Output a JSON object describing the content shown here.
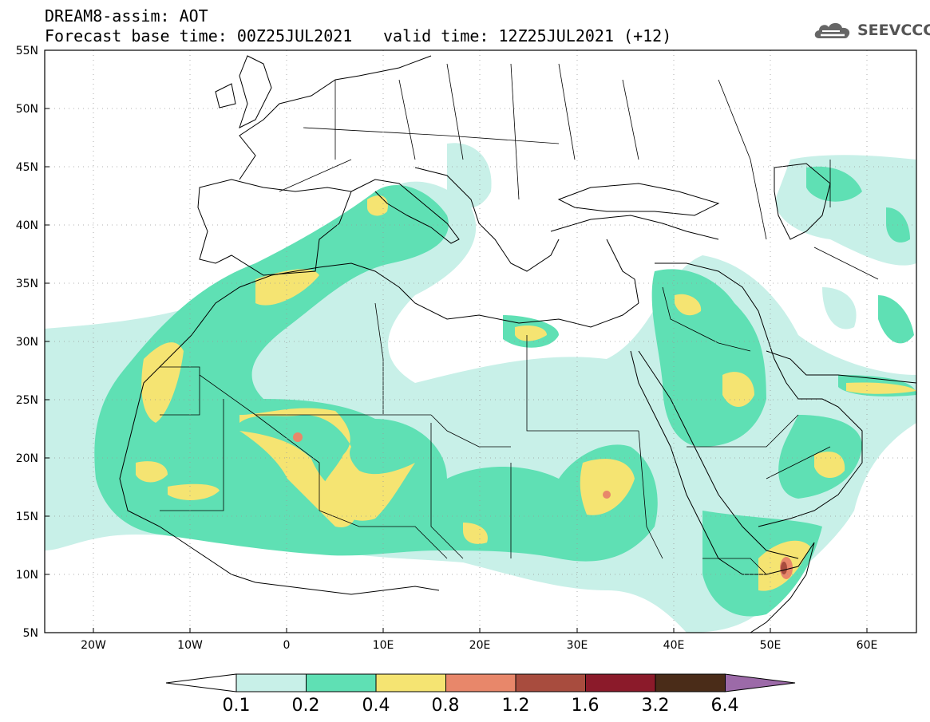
{
  "header": {
    "line1": "DREAM8-assim: AOT",
    "line2": "Forecast base time: 00Z25JUL2021",
    "line3": "valid time: 12Z25JUL2021 (+12)"
  },
  "logo": {
    "text": "SEEVCCC",
    "icon": "cloud-icon"
  },
  "axes": {
    "lat_labels": [
      "55N",
      "50N",
      "45N",
      "40N",
      "35N",
      "30N",
      "25N",
      "20N",
      "15N",
      "10N",
      "5N"
    ],
    "lon_labels": [
      "20W",
      "10W",
      "0",
      "10E",
      "20E",
      "30E",
      "40E",
      "50E",
      "60E"
    ]
  },
  "colorbar": {
    "colors": [
      "#c8f0e8",
      "#5fe0b4",
      "#f5e472",
      "#e8876a",
      "#a84c3e",
      "#8b1a2a",
      "#4a2c18",
      "#9c6aa8"
    ],
    "labels": [
      "0.1",
      "0.2",
      "0.4",
      "0.8",
      "1.2",
      "1.6",
      "3.2",
      "6.4"
    ]
  }
}
